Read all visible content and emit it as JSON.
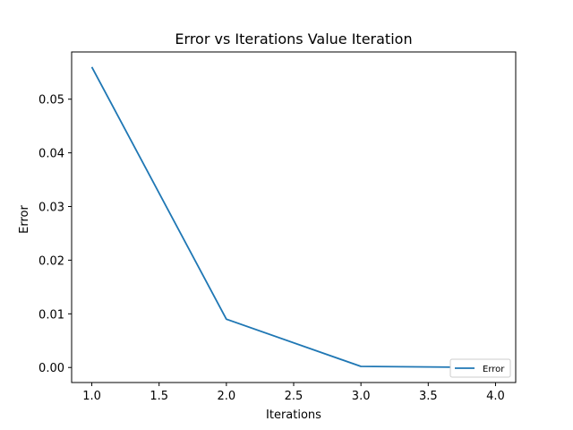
{
  "chart_data": {
    "type": "line",
    "title": "Error vs Iterations Value Iteration",
    "xlabel": "Iterations",
    "ylabel": "Error",
    "xlim": [
      0.85,
      4.15
    ],
    "ylim": [
      -0.0028,
      0.0588
    ],
    "xticks": [
      1.0,
      1.5,
      2.0,
      2.5,
      3.0,
      3.5,
      4.0
    ],
    "xtick_labels": [
      "1.0",
      "1.5",
      "2.0",
      "2.5",
      "3.0",
      "3.5",
      "4.0"
    ],
    "yticks": [
      0.0,
      0.01,
      0.02,
      0.03,
      0.04,
      0.05
    ],
    "ytick_labels": [
      "0.00",
      "0.01",
      "0.02",
      "0.03",
      "0.04",
      "0.05"
    ],
    "grid": false,
    "legend_position": "bottom-right",
    "series": [
      {
        "name": "Error",
        "color": "#1f77b4",
        "x": [
          1,
          2,
          3,
          4
        ],
        "y": [
          0.056,
          0.009,
          0.0002,
          0.0
        ]
      }
    ]
  }
}
